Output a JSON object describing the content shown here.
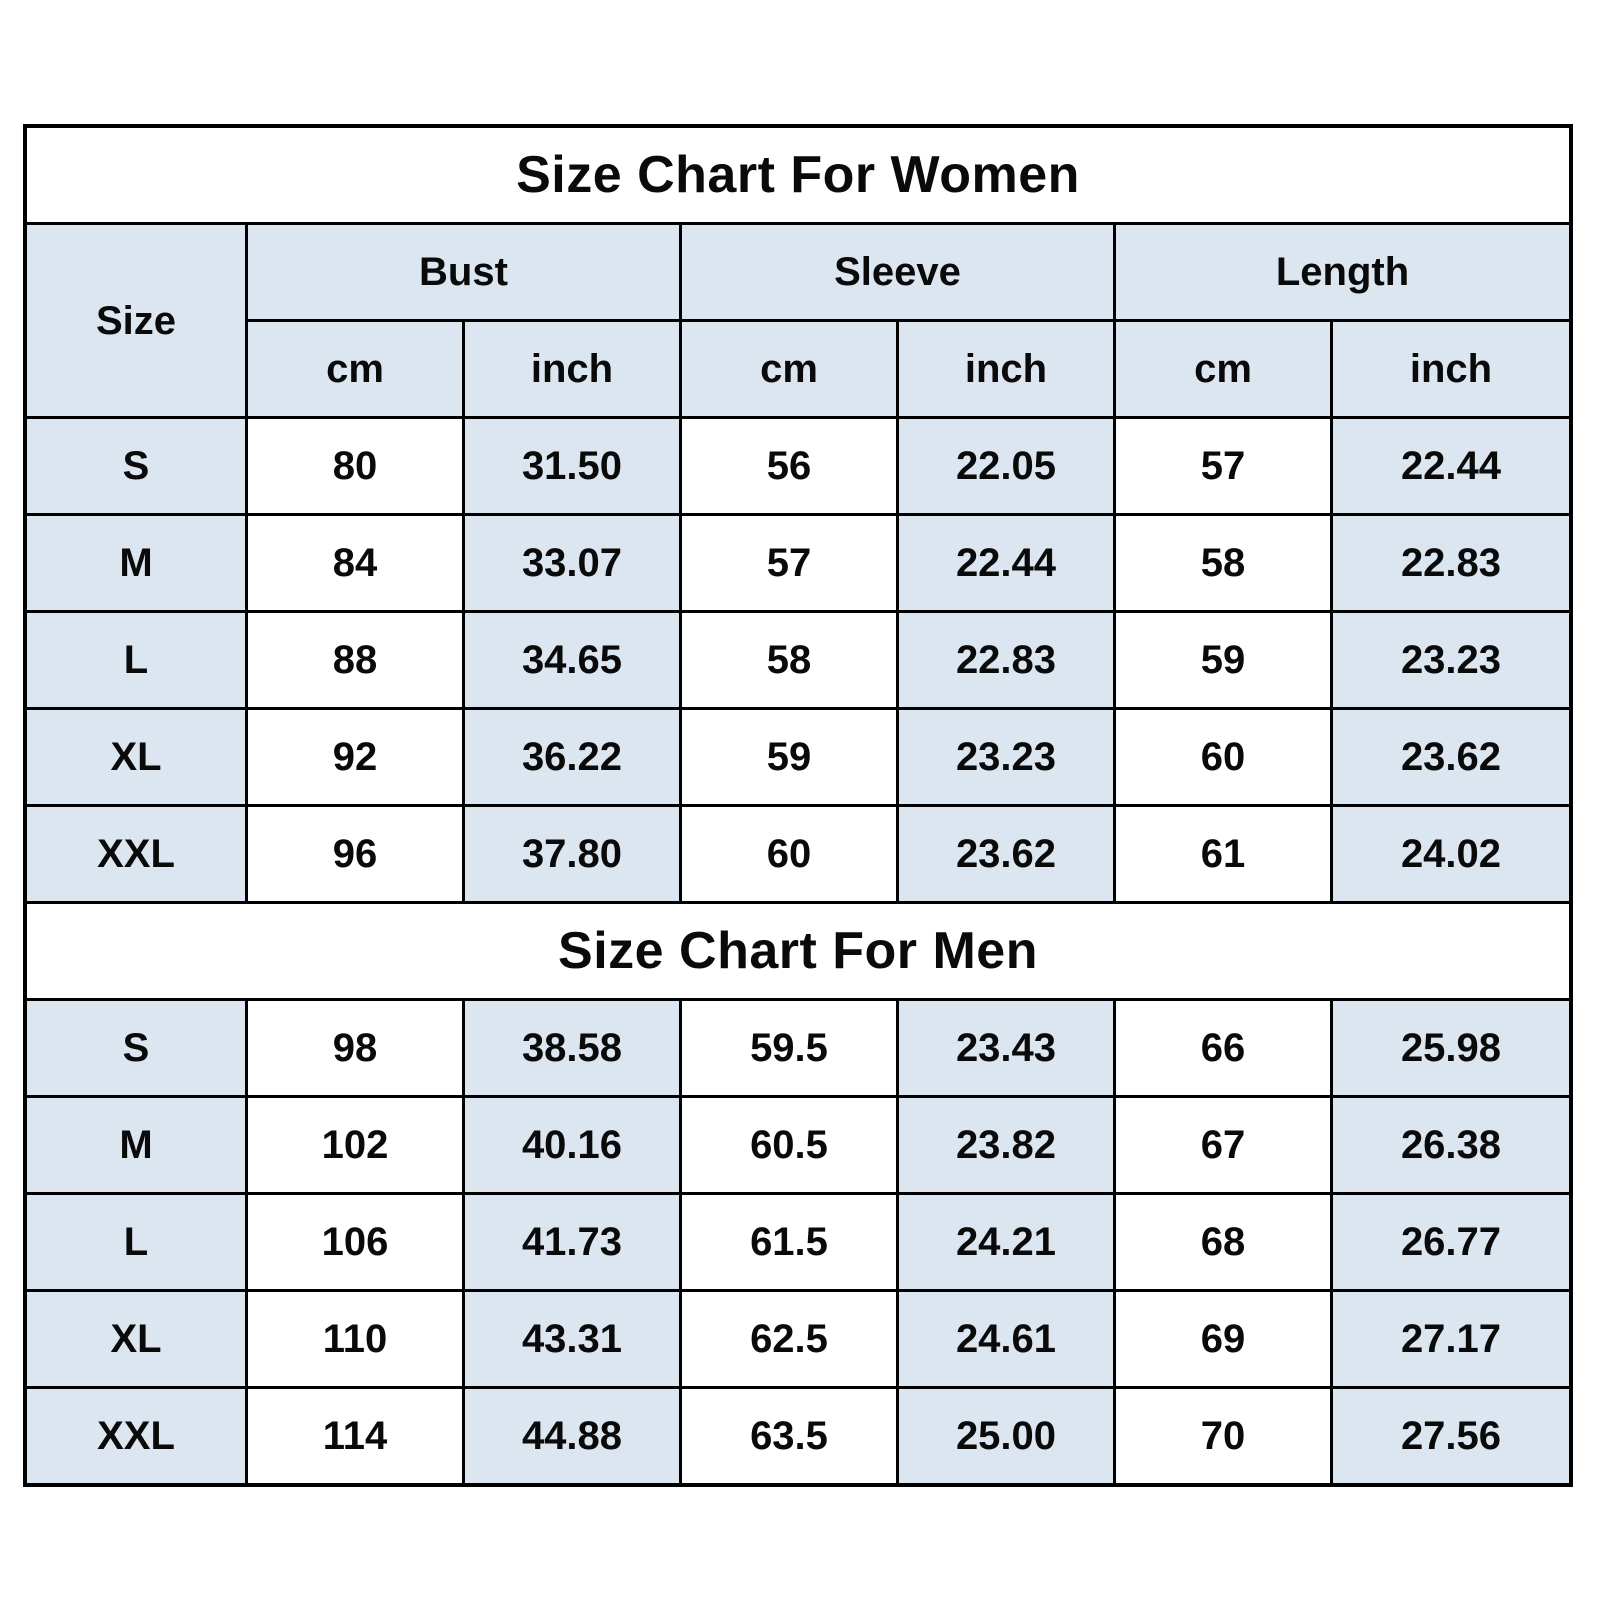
{
  "chart_data": {
    "type": "table",
    "header": {
      "size": "Size",
      "groups": [
        "Bust",
        "Sleeve",
        "Length"
      ],
      "units": [
        "cm",
        "inch",
        "cm",
        "inch",
        "cm",
        "inch"
      ]
    },
    "women": {
      "title": "Size Chart For Women",
      "rows": [
        {
          "size": "S",
          "values": [
            "80",
            "31.50",
            "56",
            "22.05",
            "57",
            "22.44"
          ]
        },
        {
          "size": "M",
          "values": [
            "84",
            "33.07",
            "57",
            "22.44",
            "58",
            "22.83"
          ]
        },
        {
          "size": "L",
          "values": [
            "88",
            "34.65",
            "58",
            "22.83",
            "59",
            "23.23"
          ]
        },
        {
          "size": "XL",
          "values": [
            "92",
            "36.22",
            "59",
            "23.23",
            "60",
            "23.62"
          ]
        },
        {
          "size": "XXL",
          "values": [
            "96",
            "37.80",
            "60",
            "23.62",
            "61",
            "24.02"
          ]
        }
      ]
    },
    "men": {
      "title": "Size Chart For Men",
      "rows": [
        {
          "size": "S",
          "values": [
            "98",
            "38.58",
            "59.5",
            "23.43",
            "66",
            "25.98"
          ]
        },
        {
          "size": "M",
          "values": [
            "102",
            "40.16",
            "60.5",
            "23.82",
            "67",
            "26.38"
          ]
        },
        {
          "size": "L",
          "values": [
            "106",
            "41.73",
            "61.5",
            "24.21",
            "68",
            "26.77"
          ]
        },
        {
          "size": "XL",
          "values": [
            "110",
            "43.31",
            "62.5",
            "24.61",
            "69",
            "27.17"
          ]
        },
        {
          "size": "XXL",
          "values": [
            "114",
            "44.88",
            "63.5",
            "25.00",
            "70",
            "27.56"
          ]
        }
      ]
    },
    "colors": {
      "cell_blue": "#dce6f1",
      "cell_white": "#ffffff",
      "border": "#000000",
      "text": "#0a0a0a"
    }
  }
}
